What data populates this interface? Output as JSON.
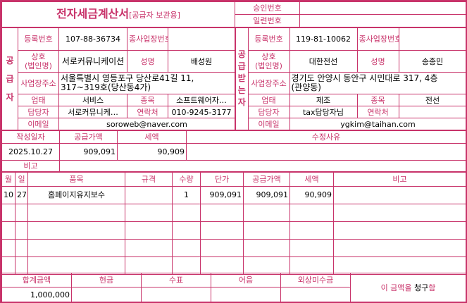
{
  "colors": {
    "accent": "#c8336a"
  },
  "header": {
    "title": "전자세금계산서",
    "subtitle": "[공급자 보관용]",
    "approval_label": "승인번호",
    "approval_value": "",
    "serial_label": "일련번호",
    "serial_value": ""
  },
  "labels": {
    "reg_no": "등록번호",
    "sub_no": "종사업장번호",
    "name": "상호(법인명)",
    "rep": "성명",
    "addr": "사업장주소",
    "biz_type": "업태",
    "biz_item": "종목",
    "manager": "담당자",
    "contact": "연락처",
    "email": "이메일"
  },
  "supplier": {
    "side_label": "공급자",
    "reg_no": "107-88-36734",
    "sub_no": "",
    "name": "서로커뮤니케이션",
    "rep": "배성원",
    "addr": "서울특별시 영등포구 당산로41길 11, 317~319호(당산동4가)",
    "biz_type": "서비스",
    "biz_item": "소프트웨어자…",
    "manager": "서로커뮤니케…",
    "contact": "010-9245-3177",
    "email": "soroweb@naver.com"
  },
  "receiver": {
    "side_label": "공급받는자",
    "reg_no": "119-81-10062",
    "sub_no": "",
    "name": "대한전선",
    "rep": "송종민",
    "addr": "경기도 안양시 동안구 시민대로 317, 4층(관양동)",
    "biz_type": "제조",
    "biz_item": "전선",
    "manager": "tax담당자님",
    "contact": "",
    "email": "ygkim@taihan.com"
  },
  "summary": {
    "date_label": "작성일자",
    "supply_label": "공급가액",
    "tax_label": "세액",
    "reason_label": "수정사유",
    "date": "2025.10.27",
    "supply": "909,091",
    "tax": "90,909",
    "reason": "",
    "note_label": "비고",
    "note": ""
  },
  "items": {
    "headers": [
      "월",
      "일",
      "품목",
      "규격",
      "수량",
      "단가",
      "공급가액",
      "세액",
      "비고"
    ],
    "rows": [
      [
        "10",
        "27",
        "홈페이지유지보수",
        "",
        "1",
        "909,091",
        "909,091",
        "90,909",
        ""
      ],
      [
        "",
        "",
        "",
        "",
        "",
        "",
        "",
        "",
        ""
      ],
      [
        "",
        "",
        "",
        "",
        "",
        "",
        "",
        "",
        ""
      ],
      [
        "",
        "",
        "",
        "",
        "",
        "",
        "",
        "",
        ""
      ],
      [
        "",
        "",
        "",
        "",
        "",
        "",
        "",
        "",
        ""
      ]
    ]
  },
  "footer": {
    "headers": [
      "합계금액",
      "현금",
      "수표",
      "어음",
      "외상미수금"
    ],
    "values": [
      "1,000,000",
      "",
      "",
      "",
      ""
    ],
    "claim_prefix": "이 금액을 ",
    "claim_word": "청구",
    "claim_suffix": "함"
  }
}
